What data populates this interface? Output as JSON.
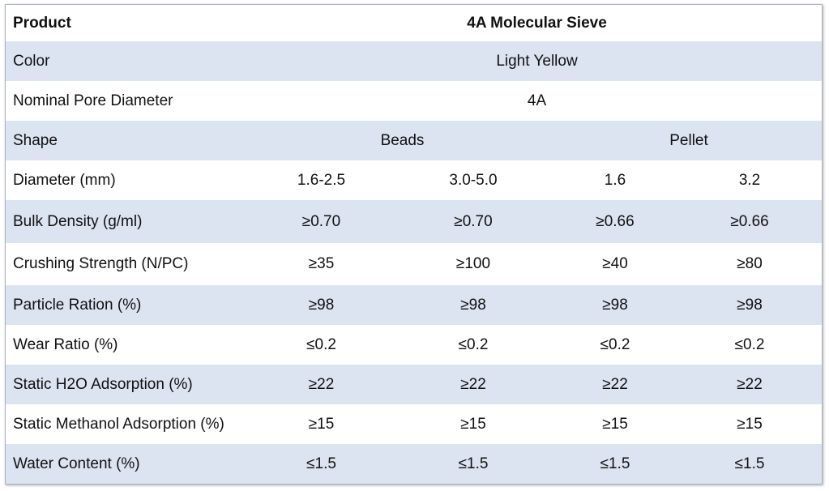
{
  "header": {
    "label": "Product",
    "value": "4A Molecular Sieve"
  },
  "rows": {
    "color": {
      "label": "Color",
      "value": "Light Yellow"
    },
    "pore": {
      "label": "Nominal Pore Diameter",
      "value": "4A"
    },
    "shape": {
      "label": "Shape",
      "beads": "Beads",
      "pellet": "Pellet"
    },
    "diameter": {
      "label": "Diameter (mm)",
      "values": [
        "1.6-2.5",
        "3.0-5.0",
        "1.6",
        "3.2"
      ]
    },
    "bulk_density": {
      "label": "Bulk Density (g/ml)",
      "values": [
        "≥0.70",
        "≥0.70",
        "≥0.66",
        "≥0.66"
      ]
    },
    "crushing": {
      "label": "Crushing Strength (N/PC)",
      "values": [
        "≥35",
        "≥100",
        "≥40",
        "≥80"
      ]
    },
    "particle": {
      "label": "Particle Ration (%)",
      "values": [
        "≥98",
        "≥98",
        "≥98",
        "≥98"
      ]
    },
    "wear": {
      "label": "Wear Ratio (%)",
      "values": [
        "≤0.2",
        "≤0.2",
        "≤0.2",
        "≤0.2"
      ]
    },
    "h2o": {
      "label": "Static H2O Adsorption (%)",
      "values": [
        "≥22",
        "≥22",
        "≥22",
        "≥22"
      ]
    },
    "methanol": {
      "label": "Static Methanol Adsorption (%)",
      "values": [
        "≥15",
        "≥15",
        "≥15",
        "≥15"
      ]
    },
    "water": {
      "label": "Water Content (%)",
      "values": [
        "≤1.5",
        "≤1.5",
        "≤1.5",
        "≤1.5"
      ]
    }
  },
  "colors": {
    "row_alt": "#dce3f1",
    "row_base": "#ffffff",
    "border": "#aab4c8"
  }
}
